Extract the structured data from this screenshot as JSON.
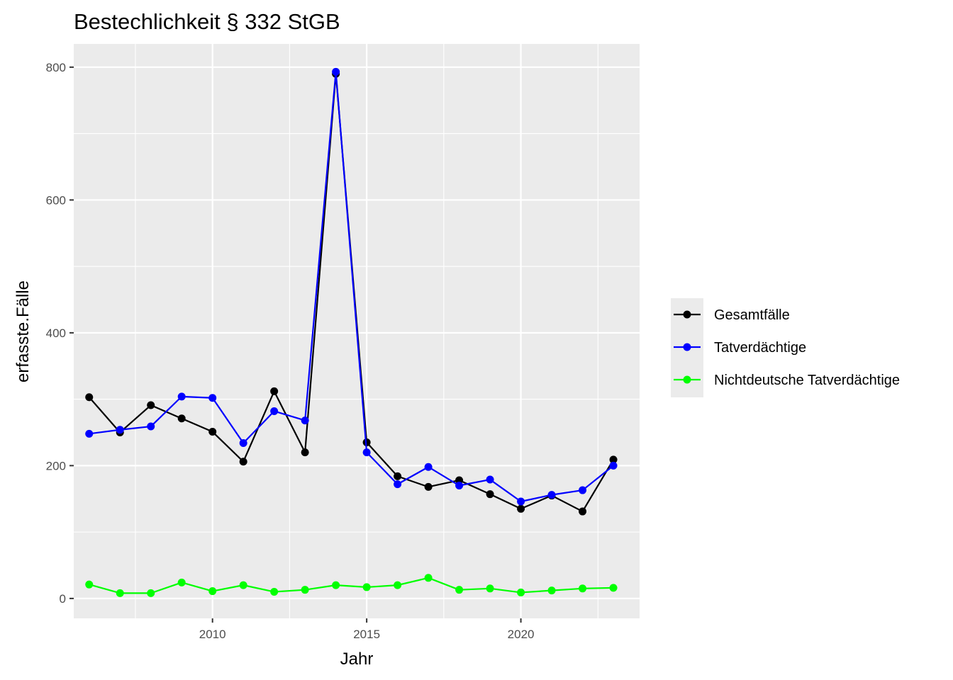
{
  "chart_data": {
    "type": "line",
    "title": "Bestechlichkeit § 332 StGB",
    "xlabel": "Jahr",
    "ylabel": "erfasste.Fälle",
    "x": [
      2006,
      2007,
      2008,
      2009,
      2010,
      2011,
      2012,
      2013,
      2014,
      2015,
      2016,
      2017,
      2018,
      2019,
      2020,
      2021,
      2022,
      2023
    ],
    "xlim": [
      2005.5,
      2023.85
    ],
    "ylim": [
      -30,
      835
    ],
    "xticks": [
      2010,
      2015,
      2020
    ],
    "yticks": [
      0,
      200,
      400,
      600,
      800
    ],
    "grid": true,
    "legend_position": "right",
    "series": [
      {
        "name": "Gesamtfälle",
        "color": "#000000",
        "values": [
          303,
          250,
          291,
          271,
          251,
          206,
          312,
          220,
          790,
          235,
          184,
          168,
          178,
          157,
          135,
          155,
          131,
          209
        ]
      },
      {
        "name": "Tatverdächtige",
        "color": "#0000ff",
        "values": [
          248,
          254,
          259,
          304,
          302,
          234,
          282,
          268,
          793,
          220,
          172,
          198,
          170,
          179,
          146,
          156,
          163,
          200
        ]
      },
      {
        "name": "Nichtdeutsche Tatverdächtige",
        "color": "#00ff00",
        "values": [
          21,
          8,
          8,
          24,
          11,
          20,
          10,
          13,
          20,
          17,
          20,
          31,
          13,
          15,
          9,
          12,
          15,
          16
        ]
      }
    ]
  }
}
